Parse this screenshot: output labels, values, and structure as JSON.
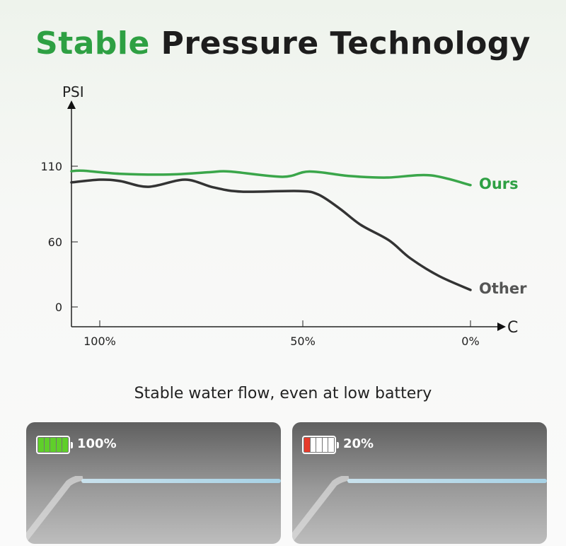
{
  "title": {
    "highlight": "Stable",
    "rest": "Pressure Technology"
  },
  "subtitle": "Stable water flow, even at low battery",
  "panels": [
    {
      "battery_label": "100%",
      "battery_level": 1.0,
      "color": "#5fcf2a"
    },
    {
      "battery_label": "20%",
      "battery_level": 0.2,
      "color": "#e53b2b"
    }
  ],
  "chart_data": {
    "type": "line",
    "ylabel": "PSI",
    "xlabel": "C",
    "yticks": [
      {
        "v": 110,
        "label": "110"
      },
      {
        "v": 60,
        "label": "60"
      },
      {
        "v": 0,
        "label": "0"
      }
    ],
    "xticks": [
      {
        "v": 100,
        "label": "100%"
      },
      {
        "v": 50,
        "label": "50%"
      },
      {
        "v": 0,
        "label": "0%"
      }
    ],
    "xlim": [
      107,
      0
    ],
    "ylim": [
      0,
      110
    ],
    "series": [
      {
        "name": "Ours",
        "color": "#3aa64a",
        "points": [
          [
            107,
            106.7
          ],
          [
            102,
            107
          ],
          [
            95,
            105
          ],
          [
            83,
            104.5
          ],
          [
            73,
            106
          ],
          [
            68,
            106.5
          ],
          [
            55,
            103
          ],
          [
            48,
            106.5
          ],
          [
            36,
            103.5
          ],
          [
            25,
            102.5
          ],
          [
            12,
            104
          ],
          [
            0,
            97.5
          ]
        ]
      },
      {
        "name": "Other",
        "color": "#333333",
        "points": [
          [
            107,
            99.3
          ],
          [
            100,
            101.1
          ],
          [
            95,
            100.2
          ],
          [
            88,
            96.4
          ],
          [
            79,
            101.1
          ],
          [
            72,
            96
          ],
          [
            65,
            93.2
          ],
          [
            51,
            93.6
          ],
          [
            45.4,
            91.3
          ],
          [
            39,
            82
          ],
          [
            32.7,
            71.2
          ],
          [
            24.3,
            61
          ],
          [
            18,
            45
          ],
          [
            9.5,
            28.7
          ],
          [
            0,
            15.7
          ]
        ]
      }
    ]
  }
}
